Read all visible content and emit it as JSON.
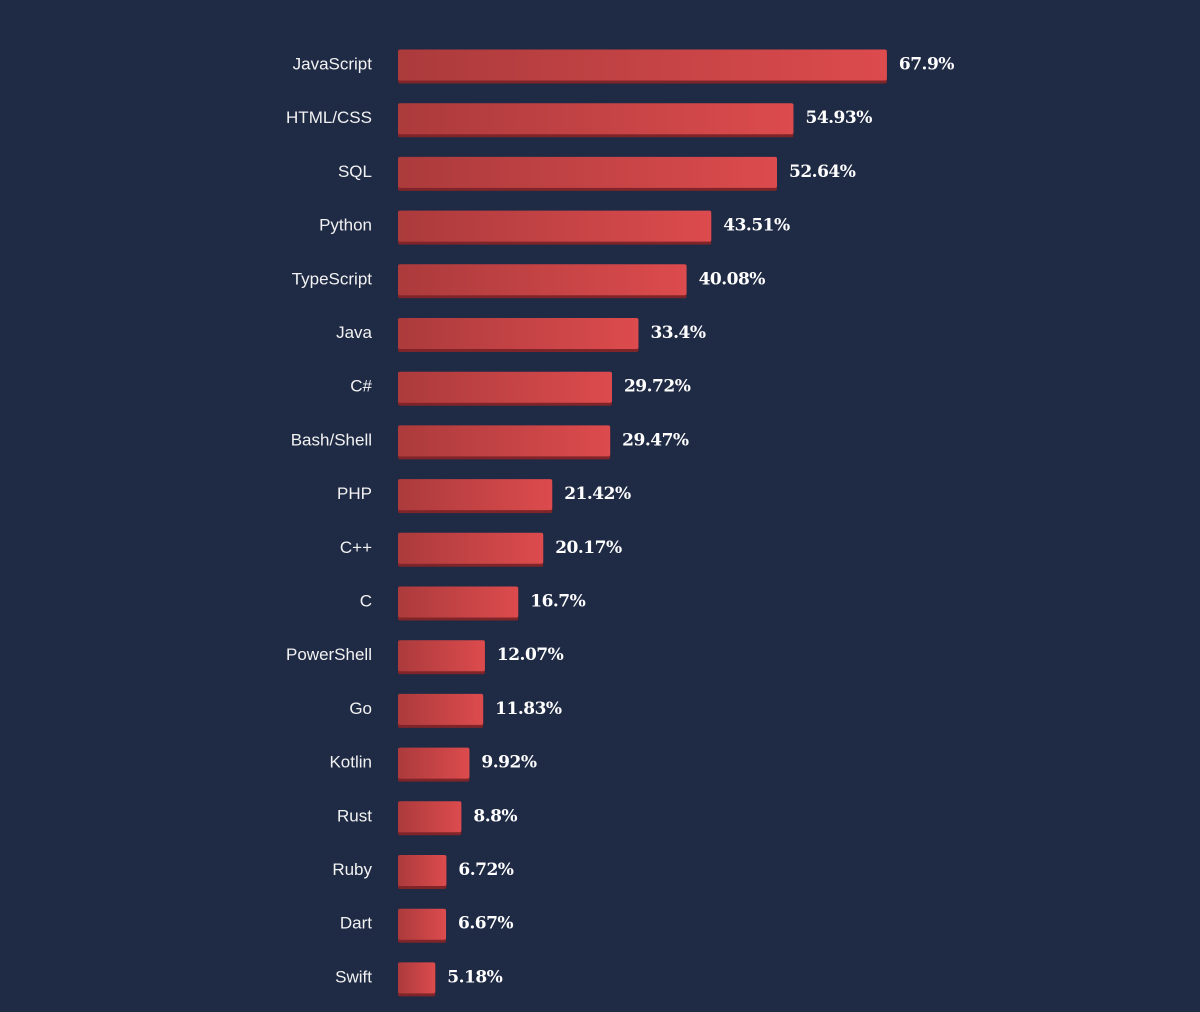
{
  "chart_data": {
    "type": "bar",
    "orientation": "horizontal",
    "categories": [
      "JavaScript",
      "HTML/CSS",
      "SQL",
      "Python",
      "TypeScript",
      "Java",
      "C#",
      "Bash/Shell",
      "PHP",
      "C++",
      "C",
      "PowerShell",
      "Go",
      "Kotlin",
      "Rust",
      "Ruby",
      "Dart",
      "Swift"
    ],
    "values": [
      67.9,
      54.93,
      52.64,
      43.51,
      40.08,
      33.4,
      29.72,
      29.47,
      21.42,
      20.17,
      16.7,
      12.07,
      11.83,
      9.92,
      8.8,
      6.72,
      6.67,
      5.18
    ],
    "value_labels": [
      "67.9%",
      "54.93%",
      "52.64%",
      "43.51%",
      "40.08%",
      "33.4%",
      "29.72%",
      "29.47%",
      "21.42%",
      "20.17%",
      "16.7%",
      "12.07%",
      "11.83%",
      "9.92%",
      "8.8%",
      "6.72%",
      "6.67%",
      "5.18%"
    ],
    "color": "#dc4b4d"
  }
}
